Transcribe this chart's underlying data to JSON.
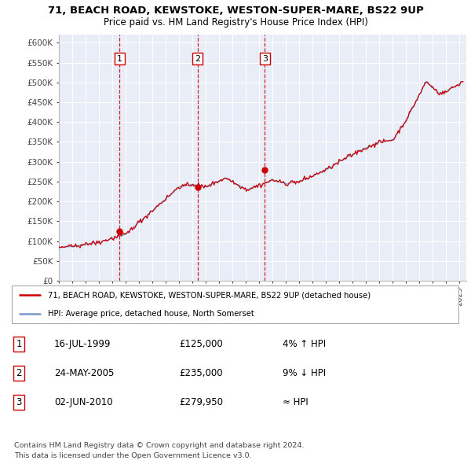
{
  "title1": "71, BEACH ROAD, KEWSTOKE, WESTON-SUPER-MARE, BS22 9UP",
  "title2": "Price paid vs. HM Land Registry's House Price Index (HPI)",
  "ylabel_ticks": [
    "£0",
    "£50K",
    "£100K",
    "£150K",
    "£200K",
    "£250K",
    "£300K",
    "£350K",
    "£400K",
    "£450K",
    "£500K",
    "£550K",
    "£600K"
  ],
  "ytick_vals": [
    0,
    50000,
    100000,
    150000,
    200000,
    250000,
    300000,
    350000,
    400000,
    450000,
    500000,
    550000,
    600000
  ],
  "ylim": [
    0,
    620000
  ],
  "xlim_start": 1995.0,
  "xlim_end": 2025.5,
  "plot_bg": "#e8edf8",
  "grid_color": "#ffffff",
  "line_color_red": "#cc0000",
  "line_color_blue": "#7799cc",
  "sale1_x": 1999.54,
  "sale1_y": 125000,
  "sale2_x": 2005.39,
  "sale2_y": 235000,
  "sale3_x": 2010.42,
  "sale3_y": 279950,
  "legend_line1": "71, BEACH ROAD, KEWSTOKE, WESTON-SUPER-MARE, BS22 9UP (detached house)",
  "legend_line2": "HPI: Average price, detached house, North Somerset",
  "table_rows": [
    [
      "1",
      "16-JUL-1999",
      "£125,000",
      "4% ↑ HPI"
    ],
    [
      "2",
      "24-MAY-2005",
      "£235,000",
      "9% ↓ HPI"
    ],
    [
      "3",
      "02-JUN-2010",
      "£279,950",
      "≈ HPI"
    ]
  ],
  "footer1": "Contains HM Land Registry data © Crown copyright and database right 2024.",
  "footer2": "This data is licensed under the Open Government Licence v3.0."
}
